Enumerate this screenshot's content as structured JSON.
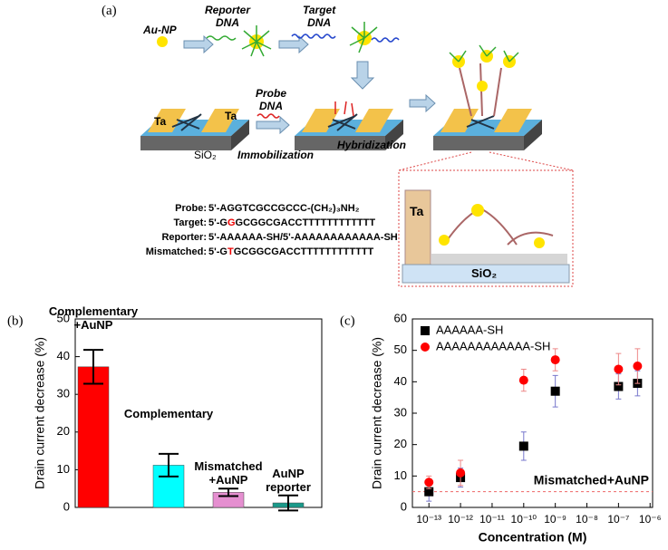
{
  "figure_a": {
    "panel": "(a)",
    "au_np": "Au-NP",
    "reporter": "Reporter\nDNA",
    "target": "Target\nDNA",
    "probe": "Probe\nDNA",
    "ta_left": "Ta",
    "ta_right": "Ta",
    "sio2": "SiO₂",
    "immobilization": "Immobilization",
    "hybridization": "Hybridization",
    "inset_ta": "Ta",
    "inset_sio2": "SiO₂",
    "sequences": [
      {
        "label": "Probe:",
        "parts": [
          "5'-AGGTCGCCGCCC-(CH₂)₃NH₂"
        ]
      },
      {
        "label": "Target:",
        "parts": [
          "5'-G",
          "G",
          "GCGGCGACCTTTTTTTTTTTT"
        ]
      },
      {
        "label": "Reporter:",
        "parts": [
          "5'-AAAAAA-SH/5'-AAAAAAAAAAAA-SH"
        ]
      },
      {
        "label": "Mismatched:",
        "parts": [
          "5'-G",
          "T",
          "GCGGCGACCTTTTTTTTTTTT"
        ]
      }
    ]
  },
  "chart_data": [
    {
      "type": "bar",
      "panel": "(b)",
      "ylabel": "Drain current decrease (%)",
      "categories": [
        "Complementary\n+AuNP",
        "Complementary",
        "Mismatched\n+AuNP",
        "AuNP\nreporter"
      ],
      "values": [
        37.3,
        11.2,
        4,
        1.2
      ],
      "errors": [
        4.5,
        3,
        1,
        2
      ],
      "colors": [
        "#ff0000",
        "#00ffff",
        "#e58fd0",
        "#1a9a8a"
      ],
      "ylim": [
        0,
        50
      ],
      "yticks": [
        0,
        10,
        20,
        30,
        40,
        50
      ]
    },
    {
      "type": "scatter",
      "panel": "(c)",
      "ylabel": "Drain current decrease (%)",
      "xlabel": "Concentration (M)",
      "x": [
        1e-13,
        1e-12,
        1e-10,
        1e-09,
        1e-07,
        4e-07
      ],
      "series": [
        {
          "name": "AAAAAA-SH",
          "color": "#000000",
          "marker": "square",
          "values": [
            5,
            9.5,
            19.5,
            37,
            38.5,
            39.5
          ],
          "errors": [
            3,
            3,
            4.5,
            5,
            4,
            4
          ]
        },
        {
          "name": "AAAAAAAAAAAA-SH",
          "color": "#ff0000",
          "marker": "circle",
          "values": [
            8,
            11,
            40.5,
            47,
            44,
            45
          ],
          "errors": [
            2,
            4,
            3.5,
            3.5,
            5,
            5.5
          ]
        }
      ],
      "xscale": "log",
      "xlim": [
        3e-14,
        1.2e-06
      ],
      "xticks": [
        {
          "value": 1e-13,
          "label": "10⁻¹³"
        },
        {
          "value": 1e-12,
          "label": "10⁻¹²"
        },
        {
          "value": 1e-11,
          "label": "10⁻¹¹"
        },
        {
          "value": 1e-10,
          "label": "10⁻¹⁰"
        },
        {
          "value": 1e-09,
          "label": "10⁻⁹"
        },
        {
          "value": 1e-08,
          "label": "10⁻⁸"
        },
        {
          "value": 1e-07,
          "label": "10⁻⁷"
        },
        {
          "value": 1e-06,
          "label": "10⁻⁶"
        }
      ],
      "ylim": [
        0,
        60
      ],
      "yticks": [
        0,
        10,
        20,
        30,
        40,
        50,
        60
      ],
      "legend": "upper-left",
      "reference_line": 5,
      "reference_label": "Mismatched+AuNP"
    }
  ]
}
